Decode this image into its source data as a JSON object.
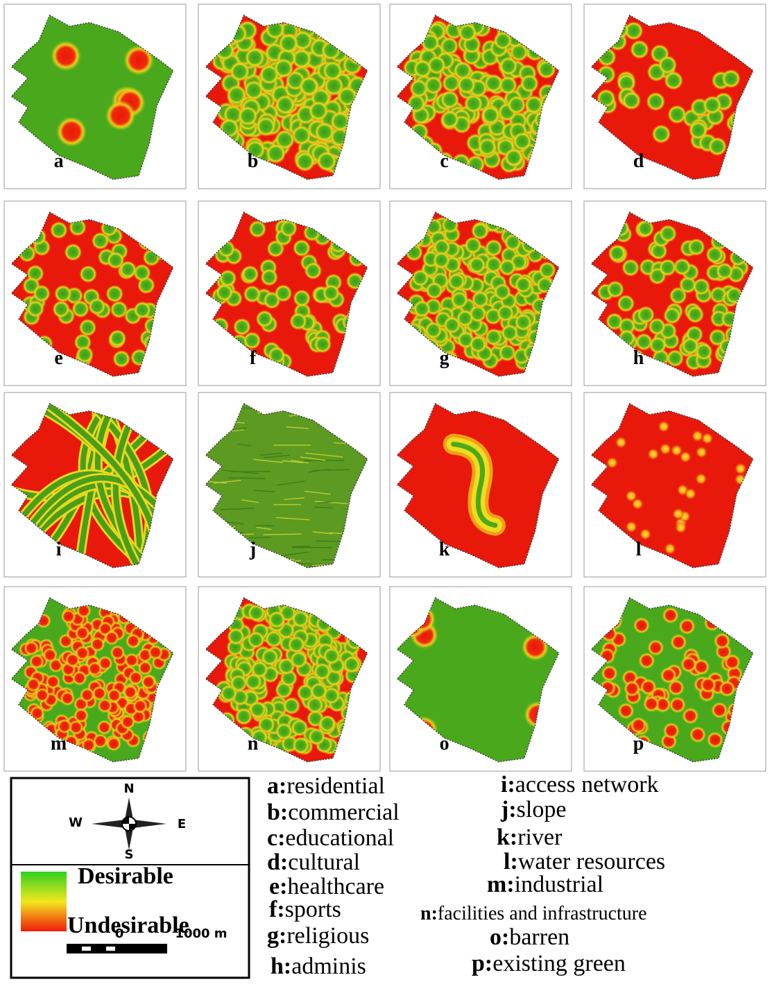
{
  "panels": [
    "a",
    "b",
    "c",
    "d",
    "e",
    "f",
    "g",
    "h",
    "i",
    "j",
    "k",
    "l",
    "m",
    "n",
    "o",
    "p"
  ],
  "compass": {
    "north": "N",
    "east": "E",
    "west": "W",
    "south": "S"
  },
  "color_legend": {
    "high": "Desirable",
    "low": "Undesirable"
  },
  "scale_labels": [
    "0",
    "1000 m"
  ],
  "items": [
    {
      "key": "a:",
      "label": "residential"
    },
    {
      "key": "b:",
      "label": "commercial"
    },
    {
      "key": "c:",
      "label": "educational"
    },
    {
      "key": "d:",
      "label": "cultural"
    },
    {
      "key": "e:",
      "label": "healthcare"
    },
    {
      "key": "f:",
      "label": "sports"
    },
    {
      "key": "g:",
      "label": "religious"
    },
    {
      "key": "h:",
      "label": "adminis"
    },
    {
      "key": "i:",
      "label": "access network"
    },
    {
      "key": "j:",
      "label": "slope"
    },
    {
      "key": "k:",
      "label": "river"
    },
    {
      "key": "l:",
      "label": "water resources"
    },
    {
      "key": "m:",
      "label": "industrial"
    },
    {
      "key": "n:",
      "label": "facilities and infrastructure"
    },
    {
      "key": "o:",
      "label": "barren"
    },
    {
      "key": "p:",
      "label": "existing green"
    }
  ]
}
